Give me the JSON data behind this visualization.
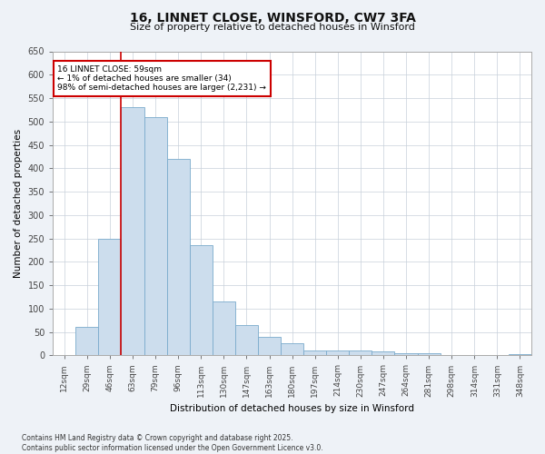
{
  "title": "16, LINNET CLOSE, WINSFORD, CW7 3FA",
  "subtitle": "Size of property relative to detached houses in Winsford",
  "xlabel": "Distribution of detached houses by size in Winsford",
  "ylabel": "Number of detached properties",
  "footnote": "Contains HM Land Registry data © Crown copyright and database right 2025.\nContains public sector information licensed under the Open Government Licence v3.0.",
  "bar_labels": [
    "12sqm",
    "29sqm",
    "46sqm",
    "63sqm",
    "79sqm",
    "96sqm",
    "113sqm",
    "130sqm",
    "147sqm",
    "163sqm",
    "180sqm",
    "197sqm",
    "214sqm",
    "230sqm",
    "247sqm",
    "264sqm",
    "281sqm",
    "298sqm",
    "314sqm",
    "331sqm",
    "348sqm"
  ],
  "bar_values": [
    0,
    60,
    250,
    530,
    510,
    420,
    235,
    115,
    65,
    40,
    25,
    10,
    10,
    10,
    8,
    5,
    5,
    0,
    0,
    0,
    2
  ],
  "bar_color": "#ccdded",
  "bar_edge_color": "#7aabcc",
  "ylim": [
    0,
    650
  ],
  "yticks": [
    0,
    50,
    100,
    150,
    200,
    250,
    300,
    350,
    400,
    450,
    500,
    550,
    600,
    650
  ],
  "annotation_text": "16 LINNET CLOSE: 59sqm\n← 1% of detached houses are smaller (34)\n98% of semi-detached houses are larger (2,231) →",
  "annotation_box_color": "#ffffff",
  "annotation_box_edge": "#cc0000",
  "vline_color": "#cc0000",
  "bg_color": "#eef2f7",
  "plot_bg_color": "#ffffff",
  "grid_color": "#c8d0da"
}
